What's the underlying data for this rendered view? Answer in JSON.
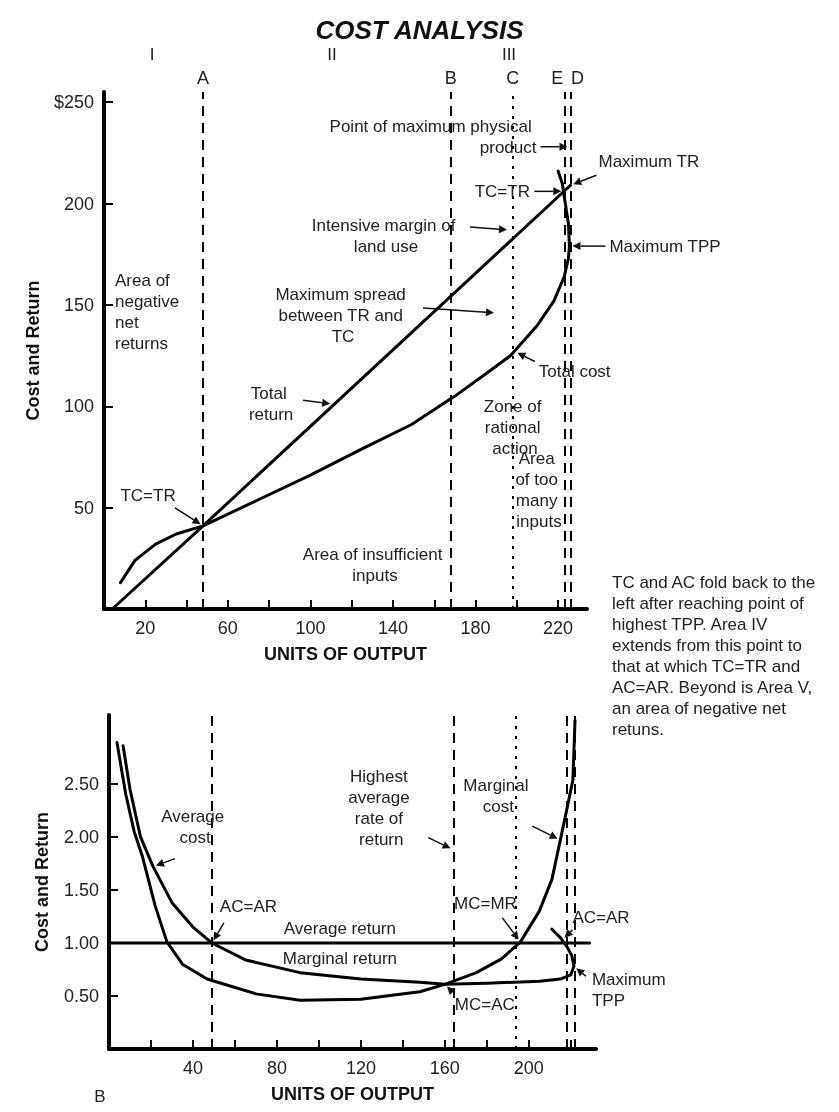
{
  "chart_data": [
    {
      "type": "line",
      "title": "COST ANALYSIS",
      "xlabel": "UNITS OF OUTPUT",
      "ylabel": "Cost and Return",
      "marker": "none",
      "grid": false,
      "xlim": [
        0,
        234
      ],
      "ylim": [
        0,
        255
      ],
      "xticks": [
        20,
        {
          "value": 40,
          "label": null
        },
        60,
        {
          "value": 80,
          "label": null
        },
        100,
        {
          "value": 120,
          "label": null
        },
        140,
        {
          "value": 160,
          "label": null
        },
        180,
        {
          "value": 200,
          "label": null
        },
        220
      ],
      "yticks": [
        50,
        100,
        150,
        200,
        {
          "value": 250,
          "label": "$250"
        }
      ],
      "series": [
        {
          "color": "#000000",
          "x": [
            4,
            48,
            226
          ],
          "values": [
            0,
            41,
            209
          ]
        },
        {
          "color": "#000000",
          "x": [
            8,
            15,
            25,
            35,
            48,
            75,
            100,
            125,
            149,
            170,
            185,
            197,
            210,
            218,
            223,
            225,
            225.5,
            225,
            223.5,
            222,
            220
          ],
          "values": [
            13,
            24,
            32,
            37,
            41,
            54,
            66,
            79,
            91,
            105,
            116,
            125,
            140,
            152,
            164,
            173,
            179,
            190,
            200,
            210,
            216
          ]
        }
      ],
      "ref_lines": [
        {
          "axis": "x",
          "value": 48,
          "label": "A",
          "line_style": "dashed"
        },
        {
          "axis": "x",
          "value": 168,
          "label": "B",
          "line_style": "dashed"
        },
        {
          "axis": "x",
          "value": 198,
          "label": "C",
          "line_style": "dotted"
        },
        {
          "axis": "x",
          "value": 223,
          "label": "E",
          "line_style": "dashed"
        },
        {
          "axis": "x",
          "value": 226,
          "label": "D",
          "line_style": "dashed"
        }
      ],
      "annotations": [
        "I",
        "II",
        "III",
        "Area of negative net returns",
        "Area of insufficient inputs",
        "Zone of rational action",
        "Area of too many inputs",
        {
          "text": "TC=TR",
          "x": 48,
          "y": 41
        },
        {
          "text": "Total return",
          "x": 111,
          "y": 101
        },
        "Maximum spread between TR and TC",
        "Intensive margin of land use",
        {
          "text": "Point of maximum physical product",
          "x": 226,
          "y": 228
        },
        {
          "text": "TC=TR",
          "x": 223,
          "y": 206
        },
        {
          "text": "Maximum TR",
          "x": 226,
          "y": 209
        },
        {
          "text": "Maximum TPP",
          "x": 225.5,
          "y": 179
        },
        {
          "text": "Total cost",
          "x": 199,
          "y": 127
        }
      ]
    },
    {
      "type": "line",
      "xlabel": "UNITS OF OUTPUT",
      "ylabel": "Cost and Return",
      "marker": "none",
      "grid": false,
      "xlim": [
        0,
        232
      ],
      "ylim": [
        0,
        3.15
      ],
      "xticks": [
        {
          "value": 20,
          "label": null
        },
        40,
        {
          "value": 60,
          "label": null
        },
        80,
        {
          "value": 100,
          "label": null
        },
        120,
        {
          "value": 140,
          "label": null
        },
        160,
        {
          "value": 180,
          "label": null
        },
        200,
        {
          "value": 220,
          "label": null
        }
      ],
      "yticks": [
        {
          "value": 0.5,
          "label": "0.50"
        },
        {
          "value": 1,
          "label": "1.00"
        },
        {
          "value": 1.5,
          "label": "1.50"
        },
        {
          "value": 2,
          "label": "2.00"
        },
        {
          "value": 2.5,
          "label": "2.50"
        }
      ],
      "series": [
        {
          "color": "#000000",
          "x": [
            0,
            229
          ],
          "values": [
            1,
            1
          ]
        },
        {
          "color": "#000000",
          "x": [
            6.7,
            10,
            15,
            21,
            30,
            40,
            49,
            65,
            91,
            120,
            148,
            160,
            180,
            205,
            215,
            220,
            221.5,
            220.5,
            218,
            215,
            211
          ],
          "values": [
            2.86,
            2.45,
            2.0,
            1.72,
            1.38,
            1.15,
            1.0,
            0.84,
            0.72,
            0.66,
            0.63,
            0.61,
            0.62,
            0.64,
            0.66,
            0.7,
            0.78,
            0.88,
            0.97,
            1.05,
            1.13
          ]
        },
        {
          "color": "#000000",
          "x": [
            3.8,
            8,
            12,
            16,
            22,
            27.6,
            35,
            46.7,
            70,
            91,
            120,
            148,
            160,
            175,
            187,
            196,
            205,
            211,
            215,
            218,
            221,
            222
          ],
          "values": [
            2.89,
            2.4,
            2.05,
            1.81,
            1.35,
            1.01,
            0.8,
            0.66,
            0.52,
            0.46,
            0.47,
            0.54,
            0.61,
            0.72,
            0.85,
            1.01,
            1.3,
            1.6,
            1.97,
            2.25,
            2.54,
            3.1
          ]
        }
      ],
      "ref_lines": [
        {
          "axis": "x",
          "value": 49,
          "line_style": "dashed"
        },
        {
          "axis": "x",
          "value": 164,
          "line_style": "dashed"
        },
        {
          "axis": "x",
          "value": 194,
          "line_style": "dotted"
        },
        {
          "axis": "x",
          "value": 218,
          "line_style": "dashed"
        },
        {
          "axis": "x",
          "value": 222,
          "line_style": "dashed"
        }
      ],
      "annotations": [
        "B",
        "TC and AC fold back to the left after reaching point of highest TPP. Area IV extends from this point to that at which TC=TR and AC=AR. Beyond is Area V, an area of negative net retuns.",
        {
          "text": "Average cost",
          "x": 21,
          "y": 1.72
        },
        {
          "text": "AC=AR",
          "x": 49,
          "y": 1
        },
        {
          "text": "Average return",
          "x": 110,
          "y": 1
        },
        {
          "text": "Marginal return",
          "x": 110,
          "y": 1
        },
        {
          "text": "Highest average rate of return",
          "x": 164,
          "y": 1.88
        },
        {
          "text": "Marginal cost",
          "x": 215,
          "y": 1.97
        },
        {
          "text": "MC=MR",
          "x": 196,
          "y": 1.01
        },
        {
          "text": "AC=AR",
          "x": 216,
          "y": 1.03
        },
        {
          "text": "Maximum TPP",
          "x": 221.5,
          "y": 0.78
        },
        {
          "text": "MC=AC",
          "x": 160,
          "y": 0.61
        }
      ]
    }
  ]
}
